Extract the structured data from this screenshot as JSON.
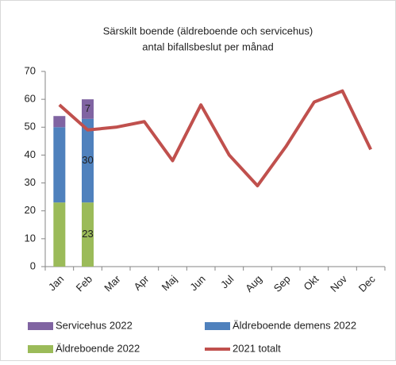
{
  "chart_data": {
    "type": "bar",
    "title": "Särskilt boende (äldreboende och servicehus)",
    "subtitle": "antal bifallsbeslut per månad",
    "categories": [
      "Jan",
      "Feb",
      "Mar",
      "Apr",
      "Maj",
      "Jun",
      "Jul",
      "Aug",
      "Sep",
      "Okt",
      "Nov",
      "Dec"
    ],
    "series": [
      {
        "name": "Servicehus 2022",
        "color": "#8064a2",
        "type": "bar",
        "values": [
          4,
          7,
          null,
          null,
          null,
          null,
          null,
          null,
          null,
          null,
          null,
          null
        ],
        "value_labels": [
          null,
          "7",
          null,
          null,
          null,
          null,
          null,
          null,
          null,
          null,
          null,
          null
        ]
      },
      {
        "name": "Äldreboende demens 2022",
        "color": "#4f81bd",
        "type": "bar",
        "values": [
          27,
          30,
          null,
          null,
          null,
          null,
          null,
          null,
          null,
          null,
          null,
          null
        ],
        "value_labels": [
          null,
          "30",
          null,
          null,
          null,
          null,
          null,
          null,
          null,
          null,
          null,
          null
        ]
      },
      {
        "name": "Äldreboende 2022",
        "color": "#9bbb59",
        "type": "bar",
        "values": [
          23,
          23,
          null,
          null,
          null,
          null,
          null,
          null,
          null,
          null,
          null,
          null
        ],
        "value_labels": [
          null,
          "23",
          null,
          null,
          null,
          null,
          null,
          null,
          null,
          null,
          null,
          null
        ]
      },
      {
        "name": "2021 totalt",
        "color": "#c0504d",
        "type": "line",
        "values": [
          58,
          49,
          50,
          52,
          38,
          58,
          40,
          29,
          43,
          59,
          63,
          42
        ]
      }
    ],
    "stacked": true,
    "ylim": [
      0,
      70
    ],
    "yticks": [
      0,
      10,
      20,
      30,
      40,
      50,
      60,
      70
    ],
    "grid": false,
    "legend": "bottom"
  }
}
